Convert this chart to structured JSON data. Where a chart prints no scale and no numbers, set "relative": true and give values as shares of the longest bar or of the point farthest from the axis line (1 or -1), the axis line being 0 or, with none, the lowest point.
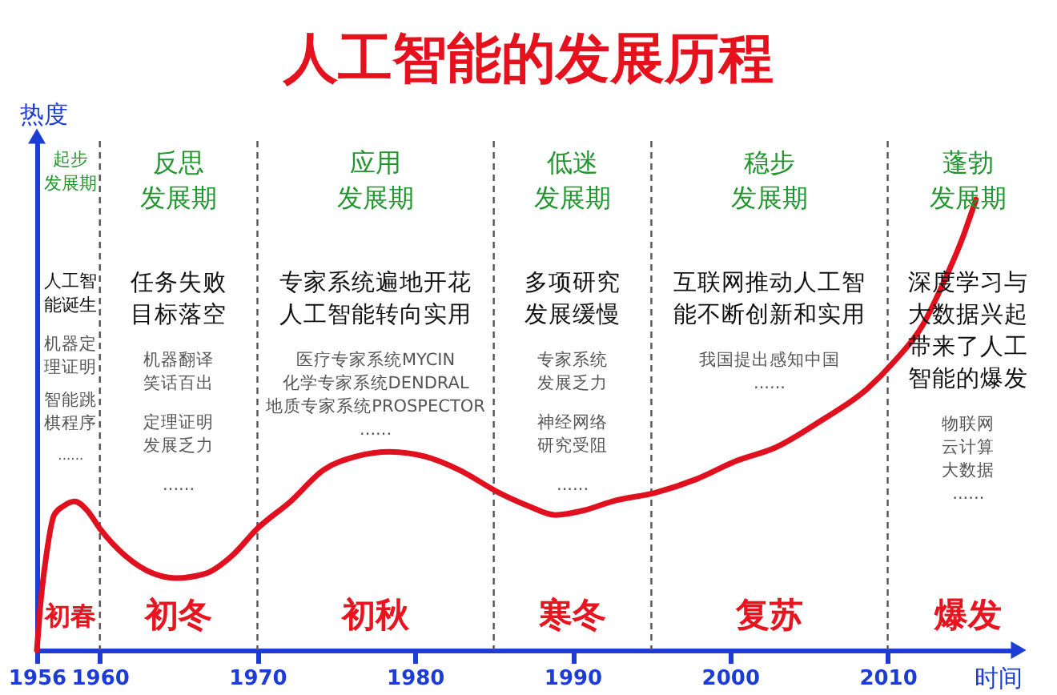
{
  "chart_data": {
    "type": "line",
    "title": "人工智能的发展历程",
    "xlabel": "时间",
    "ylabel": "热度",
    "relative": true,
    "xlim": [
      1956,
      2018
    ],
    "xticks": [
      1956,
      1960,
      1970,
      1980,
      1990,
      2000,
      2010
    ],
    "x": [
      1956,
      1956.2,
      1956.6,
      1957.1,
      1957.7,
      1958.4,
      1959.2,
      1960,
      1961.6,
      1963.4,
      1964.8,
      1966.7,
      1968.4,
      1970,
      1972.1,
      1974.2,
      1976.3,
      1978.4,
      1980.6,
      1982.8,
      1985.3,
      1987.2,
      1988.9,
      1990.7,
      1992.5,
      1995.3,
      1997.9,
      2000.4,
      2002.9,
      2005.8,
      2008.7,
      2010.4,
      2012.2,
      2013.6,
      2014.7,
      2015.6
    ],
    "values": [
      0,
      0.09,
      0.21,
      0.3,
      0.32,
      0.33,
      0.31,
      0.27,
      0.21,
      0.17,
      0.16,
      0.17,
      0.21,
      0.27,
      0.33,
      0.4,
      0.43,
      0.44,
      0.43,
      0.4,
      0.35,
      0.32,
      0.3,
      0.31,
      0.33,
      0.35,
      0.38,
      0.42,
      0.45,
      0.51,
      0.58,
      0.64,
      0.72,
      0.82,
      0.91,
      1
    ],
    "color": "#e0101e",
    "ref_lines": [
      {
        "axis": "x",
        "value": 1960,
        "line_style": "dashed",
        "color": "#555555"
      },
      {
        "axis": "x",
        "value": 1970,
        "line_style": "dashed",
        "color": "#555555"
      },
      {
        "axis": "x",
        "value": 1985,
        "line_style": "dashed",
        "color": "#555555"
      },
      {
        "axis": "x",
        "value": 1995,
        "line_style": "dashed",
        "color": "#555555"
      },
      {
        "axis": "x",
        "value": 2010,
        "line_style": "dashed",
        "color": "#555555"
      }
    ],
    "annotations": [
      "起步发展期",
      "人工智能诞生",
      "机器定理证明",
      "智能跳棋程序",
      "......",
      "初春",
      "反思发展期",
      "任务失败目标落空",
      "机器翻译笑话百出",
      "定理证明发展乏力",
      "......",
      "初冬",
      "应用发展期",
      "专家系统遍地开花人工智能转向实用",
      "医疗专家系统MYCIN",
      "化学专家系统DENDRAL",
      "地质专家系统PROSPECTOR",
      "......",
      "初秋",
      "低迷发展期",
      "多项研究发展缓慢",
      "专家系统发展乏力",
      "神经网络研究受阻",
      "......",
      "寒冬",
      "稳步发展期",
      "互联网推动人工智能不断创新和实用",
      "我国提出感知中国",
      "......",
      "复苏",
      "蓬勃发展期",
      "深度学习与大数据兴起带来了人工智能的爆发",
      "物联网",
      "云计算",
      "大数据",
      "......",
      "爆发"
    ]
  }
}
